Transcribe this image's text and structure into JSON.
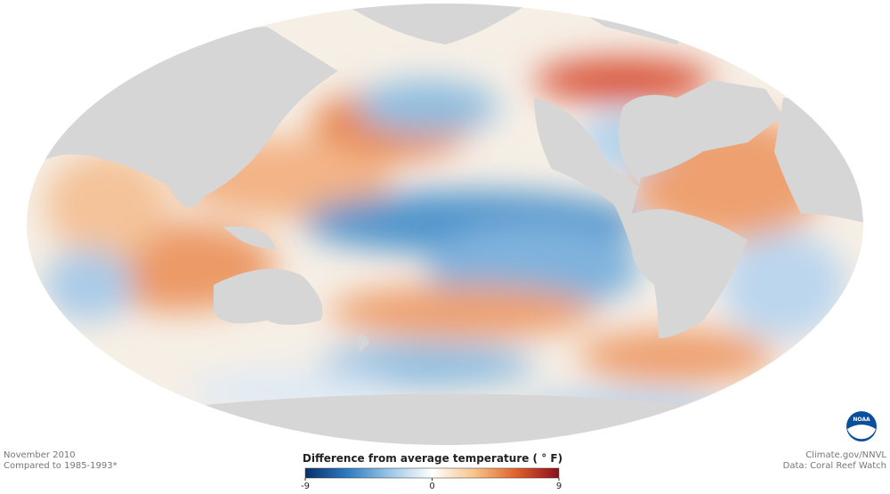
{
  "header": {
    "date": "November 2010",
    "baseline": "Compared to 1985-1993*"
  },
  "credits": {
    "source": "Climate.gov/NNVL",
    "data": "Data: Coral Reef Watch"
  },
  "logo": {
    "text": "NOAA"
  },
  "legend": {
    "title": "Difference from average temperature ( ° F)",
    "range": [
      -9,
      9
    ],
    "ticks": [
      -9,
      0,
      9
    ],
    "colors": [
      "#08306b",
      "#2f7bc0",
      "#9cc6e6",
      "#ffffff",
      "#f7c48a",
      "#e0602a",
      "#8b0e1e"
    ]
  }
}
